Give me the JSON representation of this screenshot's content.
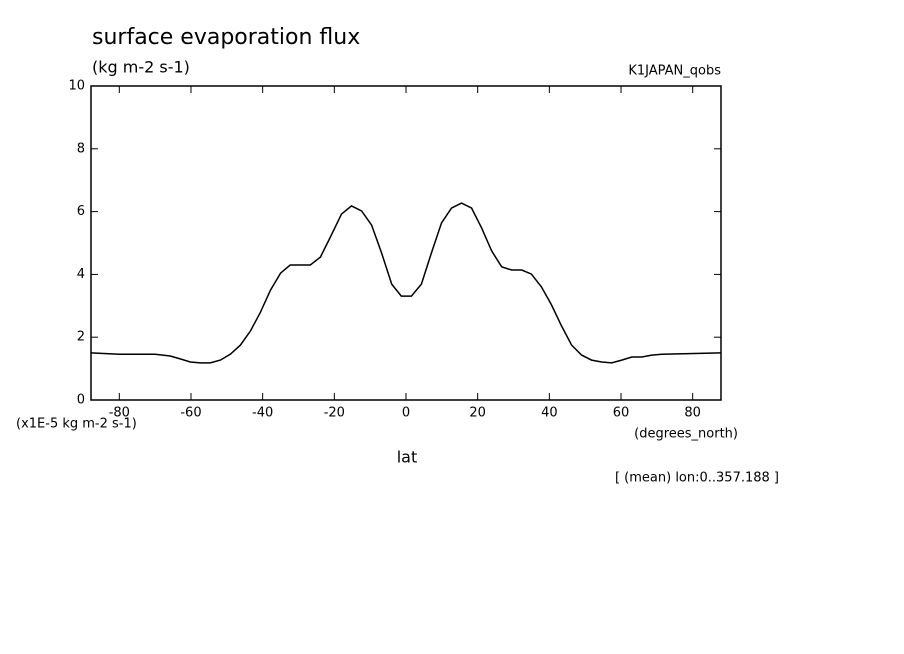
{
  "chart_data": {
    "type": "line",
    "title": "surface evaporation flux",
    "subtitle": "(kg m-2 s-1)",
    "annotation": "K1JAPAN_qobs",
    "y_label": "(x1E-5 kg m-2 s-1)",
    "x_unit": "(degrees_north)",
    "x_label": "lat",
    "note": "[ (mean) lon:0..357.188 ]",
    "color": "#000000",
    "x": [
      -87.9,
      -80,
      -70,
      -65.8,
      -63,
      -60.2,
      -57.4,
      -54.6,
      -51.8,
      -49,
      -46.2,
      -43.4,
      -40.6,
      -37.8,
      -35,
      -32.3,
      -29.5,
      -26.7,
      -23.9,
      -21.1,
      -18,
      -15.2,
      -12.4,
      -9.6,
      -6.8,
      -4,
      -1.3,
      1.5,
      4.3,
      7.1,
      9.9,
      12.7,
      15.5,
      18.3,
      21.1,
      23.9,
      26.7,
      29.5,
      32.3,
      35,
      37.8,
      40.6,
      43.4,
      46.2,
      49,
      51.8,
      54.6,
      57.4,
      60.2,
      63,
      65.8,
      68.6,
      71.4,
      87.9
    ],
    "values": [
      1.5,
      1.46,
      1.46,
      1.4,
      1.31,
      1.21,
      1.18,
      1.18,
      1.27,
      1.46,
      1.75,
      2.2,
      2.8,
      3.5,
      4.04,
      4.3,
      4.3,
      4.3,
      4.55,
      5.19,
      5.92,
      6.18,
      6.02,
      5.57,
      4.68,
      3.69,
      3.31,
      3.31,
      3.69,
      4.68,
      5.64,
      6.11,
      6.27,
      6.11,
      5.48,
      4.75,
      4.24,
      4.14,
      4.14,
      4.01,
      3.6,
      3.03,
      2.36,
      1.75,
      1.43,
      1.27,
      1.21,
      1.18,
      1.27,
      1.37,
      1.37,
      1.43,
      1.46,
      1.5
    ],
    "xlim": [
      -87.9,
      87.9
    ],
    "xticks": [
      -80,
      -60,
      -40,
      -20,
      0,
      20,
      40,
      60,
      80
    ],
    "ylim": [
      0,
      10
    ],
    "yticks": [
      0,
      2,
      4,
      6,
      8,
      10
    ]
  }
}
